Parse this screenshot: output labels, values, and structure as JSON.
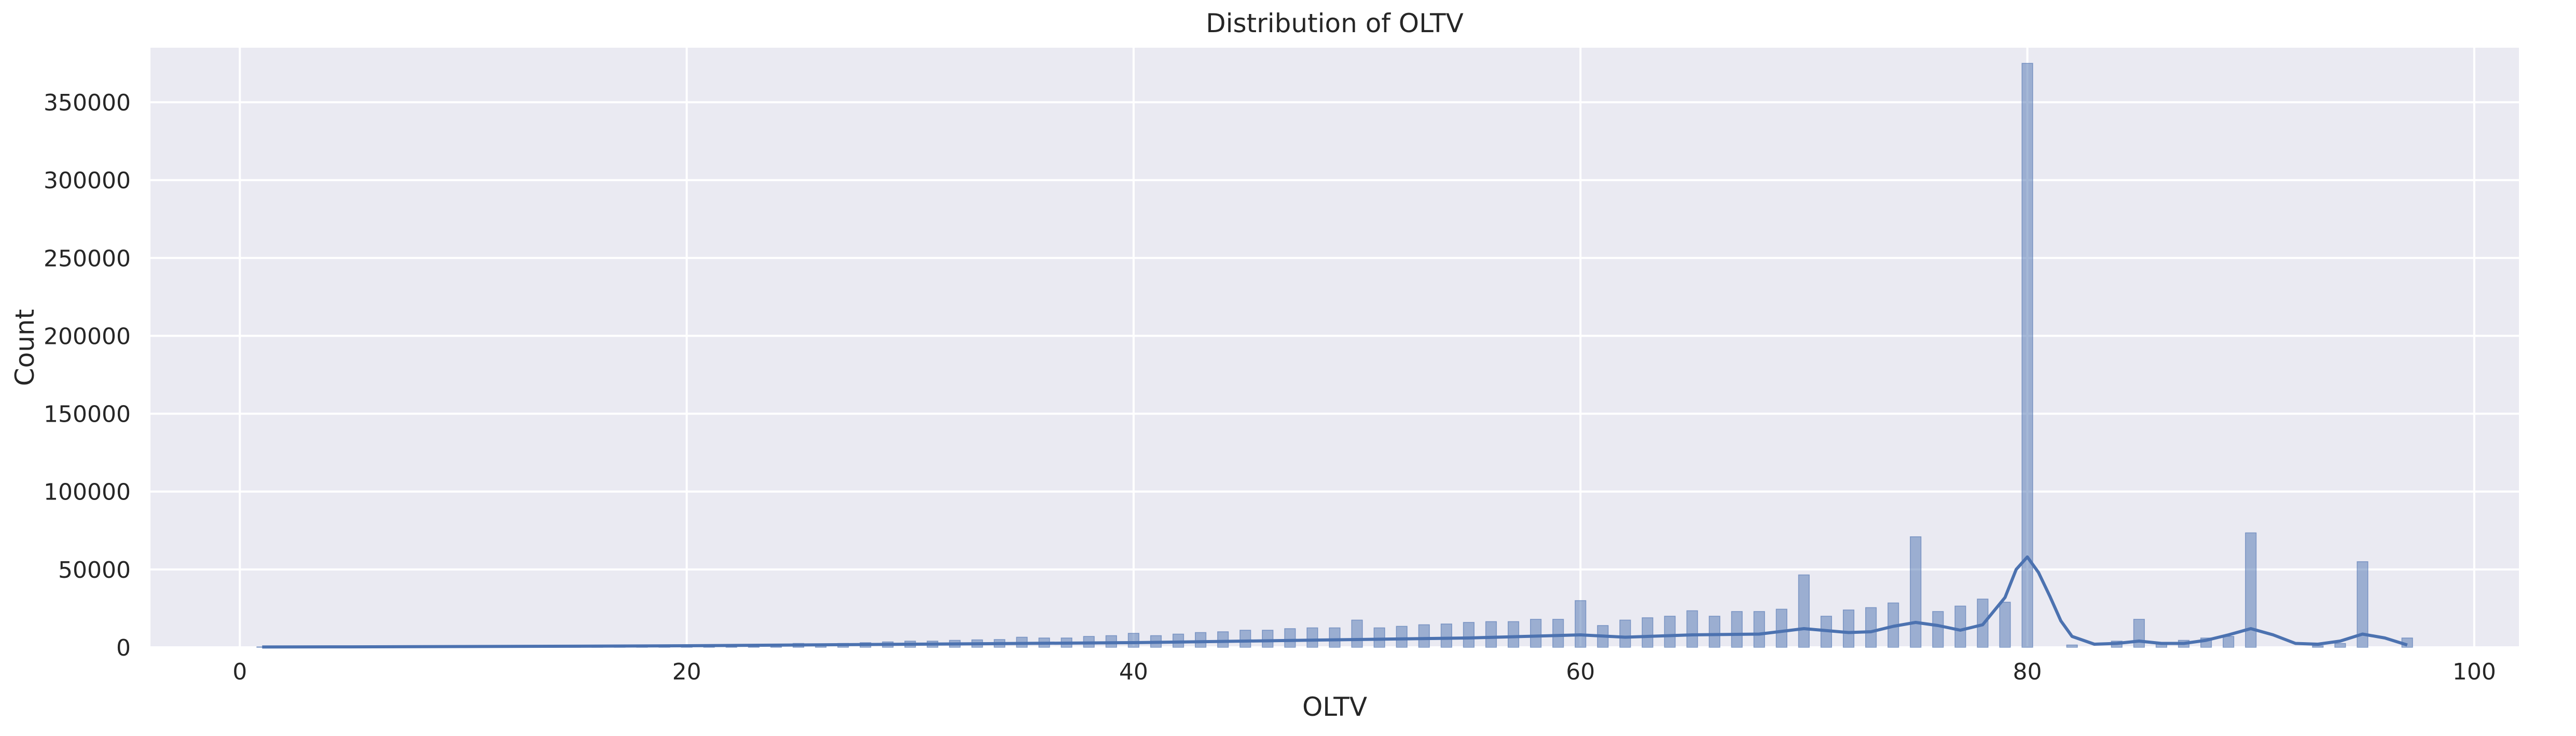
{
  "chart_data": {
    "type": "bar",
    "title": "Distribution of OLTV",
    "xlabel": "OLTV",
    "ylabel": "Count",
    "xlim": [
      -4,
      102
    ],
    "ylim": [
      0,
      385000
    ],
    "xticks": [
      0,
      20,
      40,
      60,
      80,
      100
    ],
    "yticks": [
      0,
      50000,
      100000,
      150000,
      200000,
      250000,
      300000,
      350000
    ],
    "grid": true,
    "colors": {
      "background": "#eaeaf2",
      "grid": "#ffffff",
      "bar": "#4c72b0",
      "kde": "#4c72b0",
      "text": "#262626"
    },
    "bin_width": 0.48,
    "bins": [
      {
        "x": 1,
        "count": 300
      },
      {
        "x": 2,
        "count": 250
      },
      {
        "x": 3,
        "count": 300
      },
      {
        "x": 4,
        "count": 300
      },
      {
        "x": 5,
        "count": 350
      },
      {
        "x": 6,
        "count": 350
      },
      {
        "x": 7,
        "count": 400
      },
      {
        "x": 8,
        "count": 450
      },
      {
        "x": 9,
        "count": 450
      },
      {
        "x": 10,
        "count": 500
      },
      {
        "x": 11,
        "count": 500
      },
      {
        "x": 12,
        "count": 550
      },
      {
        "x": 13,
        "count": 600
      },
      {
        "x": 14,
        "count": 650
      },
      {
        "x": 15,
        "count": 700
      },
      {
        "x": 16,
        "count": 750
      },
      {
        "x": 17,
        "count": 800
      },
      {
        "x": 18,
        "count": 900
      },
      {
        "x": 19,
        "count": 950
      },
      {
        "x": 20,
        "count": 1200
      },
      {
        "x": 21,
        "count": 1100
      },
      {
        "x": 22,
        "count": 1300
      },
      {
        "x": 23,
        "count": 1500
      },
      {
        "x": 24,
        "count": 1800
      },
      {
        "x": 25,
        "count": 2500
      },
      {
        "x": 26,
        "count": 2200
      },
      {
        "x": 27,
        "count": 2500
      },
      {
        "x": 28,
        "count": 3000
      },
      {
        "x": 29,
        "count": 3500
      },
      {
        "x": 30,
        "count": 4000
      },
      {
        "x": 31,
        "count": 4000
      },
      {
        "x": 32,
        "count": 4500
      },
      {
        "x": 33,
        "count": 4800
      },
      {
        "x": 34,
        "count": 5000
      },
      {
        "x": 35,
        "count": 6500
      },
      {
        "x": 36,
        "count": 6000
      },
      {
        "x": 37,
        "count": 6000
      },
      {
        "x": 38,
        "count": 7000
      },
      {
        "x": 39,
        "count": 7500
      },
      {
        "x": 40,
        "count": 9000
      },
      {
        "x": 41,
        "count": 7500
      },
      {
        "x": 42,
        "count": 8500
      },
      {
        "x": 43,
        "count": 9500
      },
      {
        "x": 44,
        "count": 10000
      },
      {
        "x": 45,
        "count": 11000
      },
      {
        "x": 46,
        "count": 11000
      },
      {
        "x": 47,
        "count": 12000
      },
      {
        "x": 48,
        "count": 12500
      },
      {
        "x": 49,
        "count": 12500
      },
      {
        "x": 50,
        "count": 17500
      },
      {
        "x": 51,
        "count": 12500
      },
      {
        "x": 52,
        "count": 13500
      },
      {
        "x": 53,
        "count": 14500
      },
      {
        "x": 54,
        "count": 15000
      },
      {
        "x": 55,
        "count": 16000
      },
      {
        "x": 56,
        "count": 16500
      },
      {
        "x": 57,
        "count": 16500
      },
      {
        "x": 58,
        "count": 18000
      },
      {
        "x": 59,
        "count": 18000
      },
      {
        "x": 60,
        "count": 30000
      },
      {
        "x": 61,
        "count": 14000
      },
      {
        "x": 62,
        "count": 17500
      },
      {
        "x": 63,
        "count": 19000
      },
      {
        "x": 64,
        "count": 20000
      },
      {
        "x": 65,
        "count": 23500
      },
      {
        "x": 66,
        "count": 20000
      },
      {
        "x": 67,
        "count": 23000
      },
      {
        "x": 68,
        "count": 23000
      },
      {
        "x": 69,
        "count": 24500
      },
      {
        "x": 70,
        "count": 46500
      },
      {
        "x": 71,
        "count": 20000
      },
      {
        "x": 72,
        "count": 24000
      },
      {
        "x": 73,
        "count": 25500
      },
      {
        "x": 74,
        "count": 28500
      },
      {
        "x": 75,
        "count": 71000
      },
      {
        "x": 76,
        "count": 23000
      },
      {
        "x": 77,
        "count": 26500
      },
      {
        "x": 78,
        "count": 31000
      },
      {
        "x": 79,
        "count": 29000
      },
      {
        "x": 80,
        "count": 375000
      },
      {
        "x": 82,
        "count": 1500
      },
      {
        "x": 84,
        "count": 4000
      },
      {
        "x": 85,
        "count": 18000
      },
      {
        "x": 86,
        "count": 3000
      },
      {
        "x": 87,
        "count": 4500
      },
      {
        "x": 88,
        "count": 6000
      },
      {
        "x": 89,
        "count": 7000
      },
      {
        "x": 90,
        "count": 73500
      },
      {
        "x": 93,
        "count": 1000
      },
      {
        "x": 94,
        "count": 2500
      },
      {
        "x": 95,
        "count": 55000
      },
      {
        "x": 97,
        "count": 6000
      }
    ],
    "kde": {
      "x": [
        1,
        5,
        10,
        15,
        20,
        25,
        30,
        35,
        40,
        45,
        50,
        55,
        60,
        62,
        65,
        68,
        70,
        72,
        73,
        74,
        75,
        76,
        77,
        78,
        79,
        79.5,
        80,
        80.5,
        81,
        81.5,
        82,
        83,
        84,
        85,
        86,
        87,
        88,
        89,
        90,
        91,
        92,
        93,
        94,
        95,
        96,
        97
      ],
      "y": [
        200,
        300,
        500,
        700,
        1000,
        1500,
        2000,
        2500,
        3000,
        4000,
        5000,
        6000,
        8000,
        6500,
        8000,
        8500,
        12000,
        9500,
        10000,
        13500,
        16000,
        14000,
        11000,
        14500,
        32000,
        50000,
        58000,
        48000,
        33000,
        17000,
        7000,
        2000,
        2500,
        4000,
        2500,
        2500,
        4500,
        8000,
        12000,
        8000,
        2500,
        2000,
        4000,
        8500,
        6000,
        1500
      ]
    }
  }
}
